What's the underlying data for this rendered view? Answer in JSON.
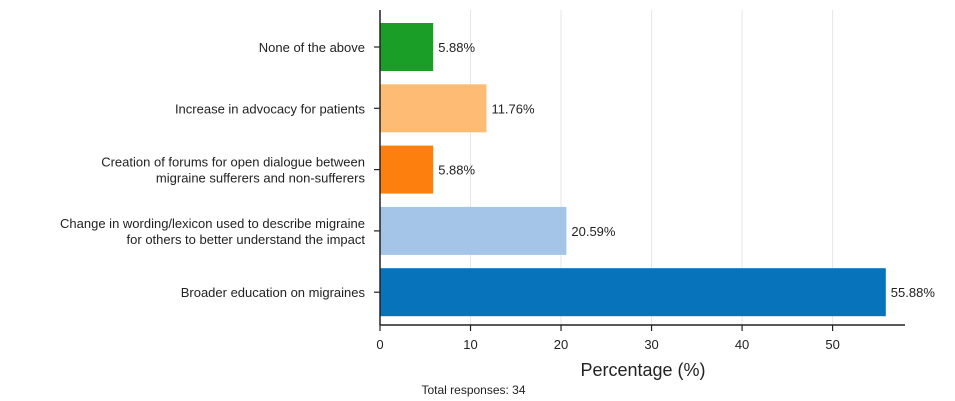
{
  "chart_data": {
    "type": "bar",
    "orientation": "horizontal",
    "categories": [
      "None of the above",
      "Increase in advocacy for patients",
      "Creation of forums for open dialogue between\nmigraine sufferers and non-sufferers",
      "Change in wording/lexicon used to describe migraine\nfor others to better understand the impact",
      "Broader education on migraines"
    ],
    "values": [
      5.88,
      11.76,
      5.88,
      20.59,
      55.88
    ],
    "value_labels": [
      "5.88%",
      "11.76%",
      "5.88%",
      "20.59%",
      "55.88%"
    ],
    "colors": [
      "#1a9e28",
      "#fdbb73",
      "#fd7f0e",
      "#a4c4e8",
      "#0773ba"
    ],
    "xlabel": "Percentage (%)",
    "ylabel": "",
    "xlim": [
      0,
      58
    ],
    "xticks": [
      0,
      10,
      20,
      30,
      40,
      50
    ],
    "grid": "vertical",
    "footnote": "Total responses: 34"
  }
}
